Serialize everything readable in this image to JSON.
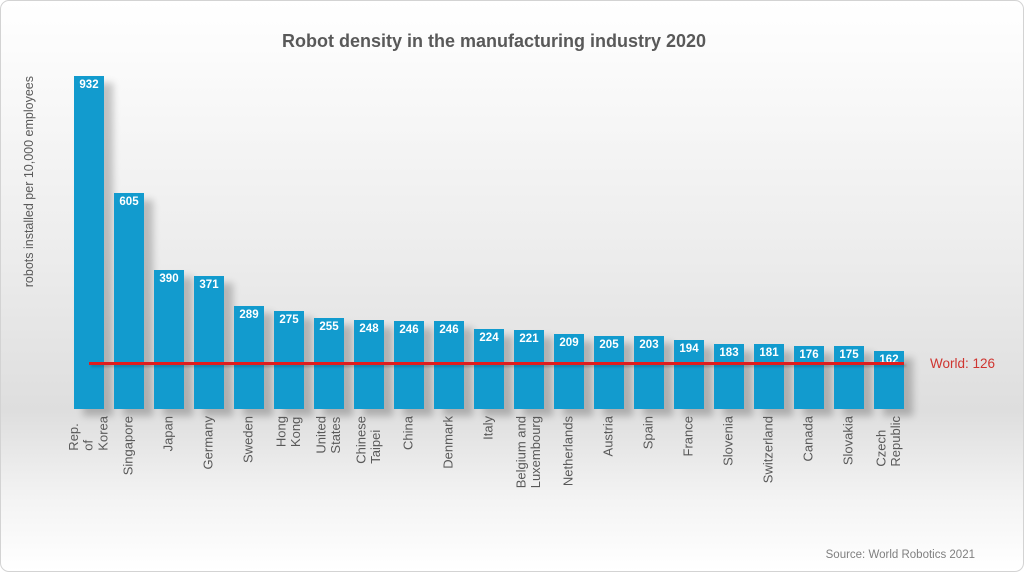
{
  "chart_data": {
    "type": "bar",
    "title": "Robot density in the manufacturing industry 2020",
    "ylabel": "robots installed per 10,000 employees",
    "source": "Source: World Robotics 2021",
    "categories": [
      "Rep. of Korea",
      "Singapore",
      "Japan",
      "Germany",
      "Sweden",
      "Hong Kong",
      "United States",
      "Chinese Taipei",
      "China",
      "Denmark",
      "Italy",
      "Belgium and\nLuxembourg",
      "Netherlands",
      "Austria",
      "Spain",
      "France",
      "Slovenia",
      "Switzerland",
      "Canada",
      "Slovakia",
      "Czech Republic"
    ],
    "values": [
      932,
      605,
      390,
      371,
      289,
      275,
      255,
      248,
      246,
      246,
      224,
      221,
      209,
      205,
      203,
      194,
      183,
      181,
      176,
      175,
      162
    ],
    "ylim": [
      0,
      932
    ],
    "grid": false,
    "legend": false,
    "orientation": "vertical",
    "reference_line": {
      "label": "World: 126",
      "value": 126
    },
    "colors": {
      "bar": "#129bce",
      "line": "#e01d1d",
      "line_label": "#cf3530",
      "title_text": "#595959",
      "axis_text": "#595959",
      "value_text": "#ffffff",
      "source_text": "#7f7f7f"
    }
  }
}
